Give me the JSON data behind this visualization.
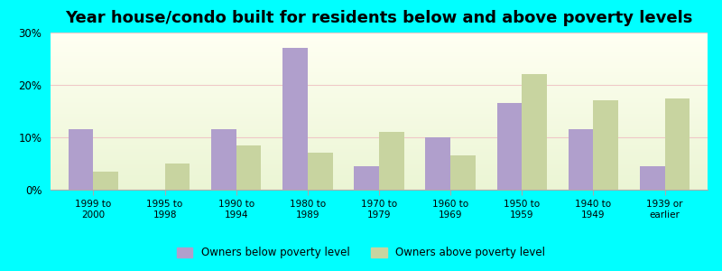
{
  "title": "Year house/condo built for residents below and above poverty levels",
  "categories": [
    "1999 to\n2000",
    "1995 to\n1998",
    "1990 to\n1994",
    "1980 to\n1989",
    "1970 to\n1979",
    "1960 to\n1969",
    "1950 to\n1959",
    "1940 to\n1949",
    "1939 or\nearlier"
  ],
  "below_poverty": [
    11.5,
    0,
    11.5,
    27.0,
    4.5,
    10.0,
    16.5,
    11.5,
    4.5
  ],
  "above_poverty": [
    3.5,
    5.0,
    8.5,
    7.0,
    11.0,
    6.5,
    22.0,
    17.0,
    17.5
  ],
  "below_color": "#b09fcc",
  "above_color": "#c8d4a0",
  "background_color": "#00ffff",
  "ylim": [
    0,
    30
  ],
  "yticks": [
    0,
    10,
    20,
    30
  ],
  "ytick_labels": [
    "0%",
    "10%",
    "20%",
    "30%"
  ],
  "title_fontsize": 13,
  "legend_below_label": "Owners below poverty level",
  "legend_above_label": "Owners above poverty level",
  "bar_width": 0.35
}
